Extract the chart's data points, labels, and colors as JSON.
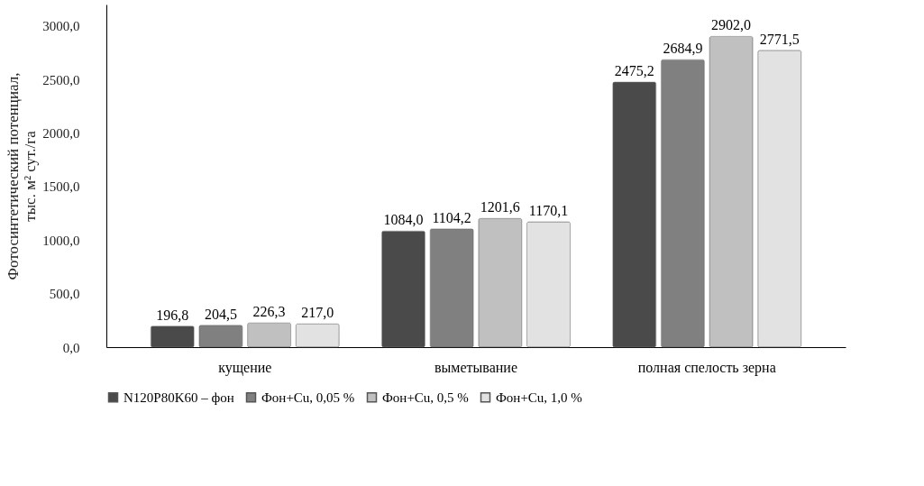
{
  "chart_data": {
    "type": "bar",
    "ylabel": "Фотосинтетический потенциал,\nтыс. м² сут./га",
    "categories": [
      "кущение",
      "выметывание",
      "полная спелость зерна"
    ],
    "series": [
      {
        "name": "N120P80K60 – фон",
        "color": "#4a4a4a",
        "values": [
          196.8,
          1084.0,
          2475.2
        ],
        "value_labels": [
          "196,8",
          "1084,0",
          "2475,2"
        ]
      },
      {
        "name": "Фон+Cu, 0,05 %",
        "color": "#808080",
        "values": [
          204.5,
          1104.2,
          2684.9
        ],
        "value_labels": [
          "204,5",
          "1104,2",
          "2684,9"
        ]
      },
      {
        "name": "Фон+Cu, 0,5 %",
        "color": "#c0c0c0",
        "values": [
          226.3,
          1201.6,
          2902.0
        ],
        "value_labels": [
          "226,3",
          "1201,6",
          "2902,0"
        ]
      },
      {
        "name": "Фон+Cu, 1,0 %",
        "color": "#e2e2e2",
        "values": [
          217.0,
          1170.1,
          2771.5
        ],
        "value_labels": [
          "217,0",
          "1170,1",
          "2771,5"
        ]
      }
    ],
    "ylim": [
      0,
      3200
    ],
    "yticks": [
      {
        "value": 0,
        "label": "0,0"
      },
      {
        "value": 500,
        "label": "500,0"
      },
      {
        "value": 1000,
        "label": "1000,0"
      },
      {
        "value": 1500,
        "label": "1500,0"
      },
      {
        "value": 2000,
        "label": "2000,0"
      },
      {
        "value": 2500,
        "label": "2500,0"
      },
      {
        "value": 3000,
        "label": "3000,0"
      }
    ],
    "grid": false,
    "legend": "bottom"
  }
}
